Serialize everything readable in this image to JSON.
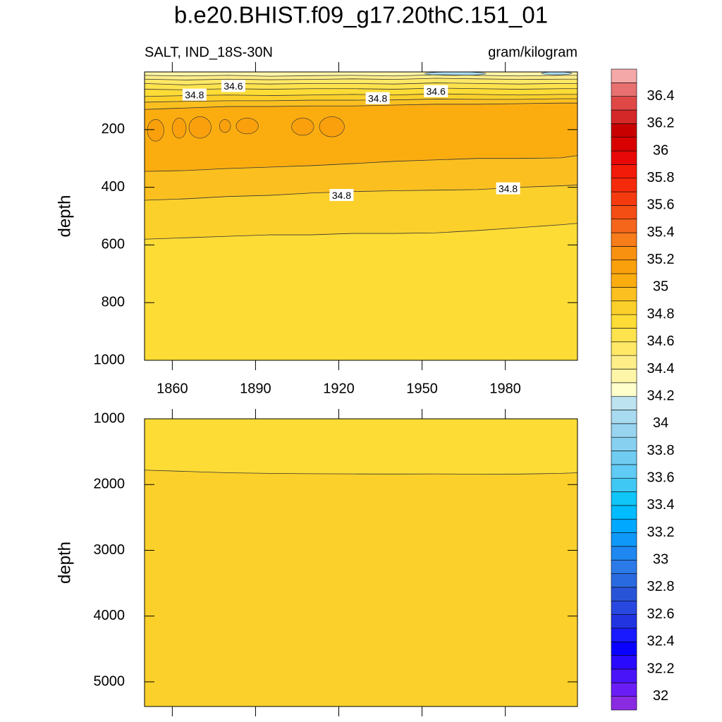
{
  "chart_data": {
    "type": "contour",
    "title": "b.e20.BHIST.f09_g17.20thC.151_01",
    "subtitle_left": "SALT, IND_18S-30N",
    "subtitle_right": "gram/kilogram",
    "colorbar": {
      "lim": [
        31.9,
        36.6
      ],
      "ticks": [
        32,
        32.2,
        32.4,
        32.6,
        32.8,
        33,
        33.2,
        33.4,
        33.6,
        33.8,
        34,
        34.2,
        34.4,
        34.6,
        34.8,
        35,
        35.2,
        35.4,
        35.6,
        35.8,
        36,
        36.2,
        36.4
      ],
      "colors": [
        "#8a2be2",
        "#6a1ef5",
        "#4a14f8",
        "#2a0afc",
        "#0a00ff",
        "#1a1aff",
        "#2233e0",
        "#2848e0",
        "#2855d8",
        "#2a6ae0",
        "#2a7ae8",
        "#1e88f0",
        "#1098f8",
        "#00a8ff",
        "#00bbff",
        "#10c5f8",
        "#40c8f5",
        "#60cbf5",
        "#70ccf0",
        "#88d0f0",
        "#98d4f0",
        "#a8daf0",
        "#bde2f0",
        "#ffffcc",
        "#fff5a8",
        "#ffee88",
        "#ffe866",
        "#ffe34d",
        "#fddc36",
        "#fcd02a",
        "#fbc020",
        "#fbad10",
        "#f9a00c",
        "#f89010",
        "#f77c1a",
        "#f5661a",
        "#f54e14",
        "#f53a10",
        "#f52a0a",
        "#f21a08",
        "#e80808",
        "#d80000",
        "#c80000",
        "#d42828",
        "#e04848",
        "#e87070",
        "#f4a8a8"
      ]
    },
    "panels": [
      {
        "ylabel": "depth",
        "xlim": [
          1850,
          2006
        ],
        "ylim": [
          0,
          1000
        ],
        "xticks": [
          1860,
          1890,
          1920,
          1950,
          1980
        ],
        "yticks": [
          200,
          400,
          600,
          800,
          1000
        ],
        "x": [
          1850,
          1865,
          1880,
          1895,
          1910,
          1925,
          1940,
          1955,
          1970,
          1985,
          2000,
          2006
        ],
        "layers": [
          {
            "value": 34.35,
            "depth": [
              0,
              0,
              0,
              0,
              0,
              0,
              0,
              0,
              0,
              0,
              0,
              0
            ]
          },
          {
            "value": 34.45,
            "depth": [
              12,
              14,
              12,
              15,
              13,
              12,
              14,
              10,
              12,
              14,
              12,
              12
            ]
          },
          {
            "value": 34.55,
            "depth": [
              25,
              28,
              25,
              27,
              26,
              24,
              26,
              22,
              24,
              26,
              25,
              25
            ]
          },
          {
            "value": 34.65,
            "depth": [
              40,
              45,
              40,
              42,
              40,
              40,
              42,
              38,
              40,
              42,
              40,
              40
            ]
          },
          {
            "value": 34.75,
            "depth": [
              60,
              62,
              58,
              60,
              58,
              58,
              60,
              56,
              58,
              60,
              58,
              58
            ]
          },
          {
            "value": 34.85,
            "depth": [
              85,
              82,
              80,
              82,
              80,
              78,
              80,
              76,
              78,
              80,
              78,
              78
            ]
          },
          {
            "value": 34.95,
            "depth": [
              105,
              102,
              100,
              100,
              98,
              98,
              97,
              94,
              95,
              95,
              93,
              93
            ]
          },
          {
            "value": 35.05,
            "depth": [
              130,
              125,
              120,
              120,
              118,
              118,
              115,
              112,
              112,
              110,
              108,
              108
            ]
          },
          {
            "value": 34.95,
            "depth": [
              345,
              342,
              335,
              330,
              325,
              318,
              310,
              305,
              300,
              300,
              298,
              290
            ]
          },
          {
            "value": 34.85,
            "depth": [
              445,
              440,
              432,
              428,
              420,
              415,
              412,
              410,
              408,
              400,
              395,
              392
            ]
          },
          {
            "value": 34.75,
            "depth": [
              580,
              575,
              570,
              565,
              565,
              560,
              560,
              558,
              550,
              540,
              530,
              525
            ]
          }
        ],
        "blobs": [
          {
            "value": 35.15,
            "x": [
              1851,
              1857
            ],
            "depth": [
              165,
              240
            ]
          },
          {
            "value": 35.15,
            "x": [
              1860,
              1865
            ],
            "depth": [
              160,
              230
            ]
          },
          {
            "value": 35.15,
            "x": [
              1866,
              1874
            ],
            "depth": [
              155,
              230
            ]
          },
          {
            "value": 35.15,
            "x": [
              1877,
              1881
            ],
            "depth": [
              165,
              210
            ]
          },
          {
            "value": 35.15,
            "x": [
              1883,
              1891
            ],
            "depth": [
              160,
              215
            ]
          },
          {
            "value": 35.15,
            "x": [
              1903,
              1911
            ],
            "depth": [
              160,
              220
            ]
          },
          {
            "value": 35.15,
            "x": [
              1913,
              1922
            ],
            "depth": [
              155,
              225
            ]
          },
          {
            "value": 34.05,
            "x": [
              1951,
              1973
            ],
            "depth": [
              0,
              12
            ]
          },
          {
            "value": 34.05,
            "x": [
              1993,
              2004
            ],
            "depth": [
              0,
              10
            ]
          }
        ],
        "labels": [
          {
            "value": 34.8,
            "x": 1868,
            "depth": 80
          },
          {
            "value": 34.6,
            "x": 1882,
            "depth": 50
          },
          {
            "value": 34.8,
            "x": 1934,
            "depth": 92
          },
          {
            "value": 34.6,
            "x": 1955,
            "depth": 68
          },
          {
            "value": 34.8,
            "x": 1921,
            "depth": 428
          },
          {
            "value": 34.8,
            "x": 1981,
            "depth": 405
          }
        ]
      },
      {
        "ylabel": "depth",
        "xlim": [
          1850,
          2006
        ],
        "ylim": [
          1000,
          5375
        ],
        "yticks": [
          1000,
          2000,
          3000,
          4000,
          5000
        ],
        "x": [
          1850,
          1865,
          1880,
          1895,
          1910,
          1925,
          1940,
          1955,
          1970,
          1985,
          2000,
          2006
        ],
        "layers": [
          {
            "value": 34.75,
            "depth": [
              1000,
              1000,
              1000,
              1000,
              1000,
              1000,
              1000,
              1000,
              1000,
              1000,
              1000,
              1000
            ]
          },
          {
            "value": 34.85,
            "depth": [
              1780,
              1800,
              1820,
              1830,
              1835,
              1838,
              1840,
              1838,
              1842,
              1840,
              1830,
              1820
            ]
          }
        ]
      }
    ]
  }
}
